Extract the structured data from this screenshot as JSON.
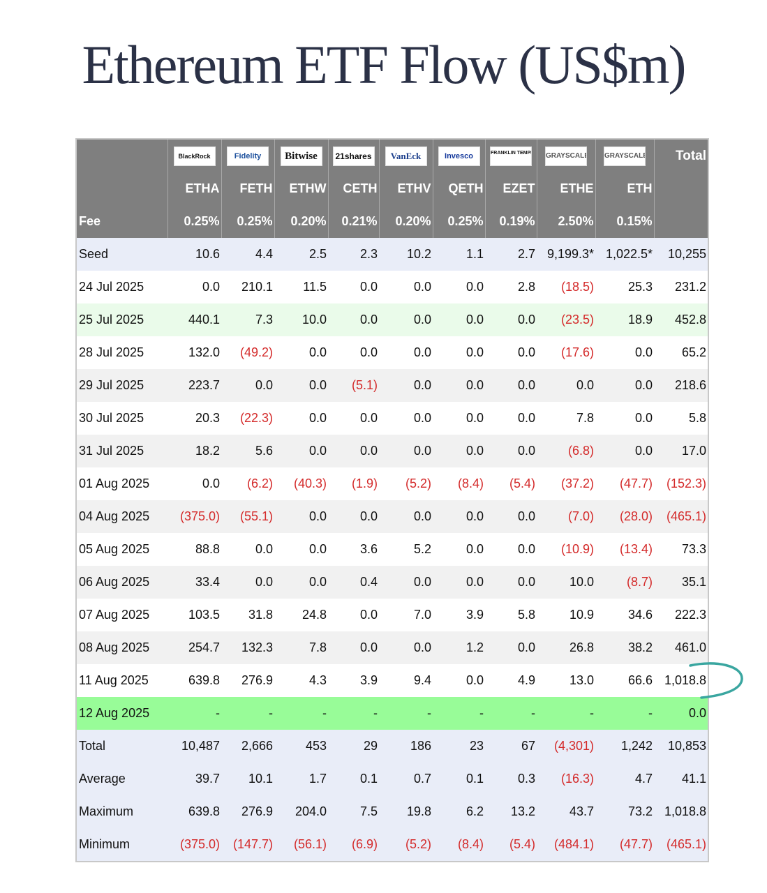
{
  "title": "Ethereum ETF Flow (US$m)",
  "header": {
    "logos": [
      "BlackRock",
      "Fidelity",
      "Bitwise",
      "21shares",
      "VanEck",
      "Invesco",
      "FRANKLIN TEMPLETON",
      "GRAYSCALE",
      "GRAYSCALE"
    ],
    "total_label": "Total",
    "tickers": [
      "ETHA",
      "FETH",
      "ETHW",
      "CETH",
      "ETHV",
      "QETH",
      "EZET",
      "ETHE",
      "ETH"
    ],
    "fee_label": "Fee",
    "fees": [
      "0.25%",
      "0.25%",
      "0.20%",
      "0.21%",
      "0.20%",
      "0.25%",
      "0.19%",
      "2.50%",
      "0.15%"
    ]
  },
  "rows": [
    {
      "label": "Seed",
      "values": [
        "10.6",
        "4.4",
        "2.5",
        "2.3",
        "10.2",
        "1.1",
        "2.7",
        "9,199.3*",
        "1,022.5*",
        "10,255"
      ]
    },
    {
      "label": "24 Jul 2025",
      "values": [
        "0.0",
        "210.1",
        "11.5",
        "0.0",
        "0.0",
        "0.0",
        "2.8",
        "(18.5)",
        "25.3",
        "231.2"
      ]
    },
    {
      "label": "25 Jul 2025",
      "values": [
        "440.1",
        "7.3",
        "10.0",
        "0.0",
        "0.0",
        "0.0",
        "0.0",
        "(23.5)",
        "18.9",
        "452.8"
      ]
    },
    {
      "label": "28 Jul 2025",
      "values": [
        "132.0",
        "(49.2)",
        "0.0",
        "0.0",
        "0.0",
        "0.0",
        "0.0",
        "(17.6)",
        "0.0",
        "65.2"
      ]
    },
    {
      "label": "29 Jul 2025",
      "values": [
        "223.7",
        "0.0",
        "0.0",
        "(5.1)",
        "0.0",
        "0.0",
        "0.0",
        "0.0",
        "0.0",
        "218.6"
      ]
    },
    {
      "label": "30 Jul 2025",
      "values": [
        "20.3",
        "(22.3)",
        "0.0",
        "0.0",
        "0.0",
        "0.0",
        "0.0",
        "7.8",
        "0.0",
        "5.8"
      ]
    },
    {
      "label": "31 Jul 2025",
      "values": [
        "18.2",
        "5.6",
        "0.0",
        "0.0",
        "0.0",
        "0.0",
        "0.0",
        "(6.8)",
        "0.0",
        "17.0"
      ]
    },
    {
      "label": "01 Aug 2025",
      "values": [
        "0.0",
        "(6.2)",
        "(40.3)",
        "(1.9)",
        "(5.2)",
        "(8.4)",
        "(5.4)",
        "(37.2)",
        "(47.7)",
        "(152.3)"
      ]
    },
    {
      "label": "04 Aug 2025",
      "values": [
        "(375.0)",
        "(55.1)",
        "0.0",
        "0.0",
        "0.0",
        "0.0",
        "0.0",
        "(7.0)",
        "(28.0)",
        "(465.1)"
      ]
    },
    {
      "label": "05 Aug 2025",
      "values": [
        "88.8",
        "0.0",
        "0.0",
        "3.6",
        "5.2",
        "0.0",
        "0.0",
        "(10.9)",
        "(13.4)",
        "73.3"
      ]
    },
    {
      "label": "06 Aug 2025",
      "values": [
        "33.4",
        "0.0",
        "0.0",
        "0.4",
        "0.0",
        "0.0",
        "0.0",
        "10.0",
        "(8.7)",
        "35.1"
      ]
    },
    {
      "label": "07 Aug 2025",
      "values": [
        "103.5",
        "31.8",
        "24.8",
        "0.0",
        "7.0",
        "3.9",
        "5.8",
        "10.9",
        "34.6",
        "222.3"
      ]
    },
    {
      "label": "08 Aug 2025",
      "values": [
        "254.7",
        "132.3",
        "7.8",
        "0.0",
        "0.0",
        "1.2",
        "0.0",
        "26.8",
        "38.2",
        "461.0"
      ]
    },
    {
      "label": "11 Aug 2025",
      "values": [
        "639.8",
        "276.9",
        "4.3",
        "3.9",
        "9.4",
        "0.0",
        "4.9",
        "13.0",
        "66.6",
        "1,018.8"
      ]
    },
    {
      "label": "12 Aug 2025",
      "values": [
        "-",
        "-",
        "-",
        "-",
        "-",
        "-",
        "-",
        "-",
        "-",
        "0.0"
      ]
    },
    {
      "label": "Total",
      "values": [
        "10,487",
        "2,666",
        "453",
        "29",
        "186",
        "23",
        "67",
        "(4,301)",
        "1,242",
        "10,853"
      ]
    },
    {
      "label": "Average",
      "values": [
        "39.7",
        "10.1",
        "1.7",
        "0.1",
        "0.7",
        "0.1",
        "0.3",
        "(16.3)",
        "4.7",
        "41.1"
      ]
    },
    {
      "label": "Maximum",
      "values": [
        "639.8",
        "276.9",
        "204.0",
        "7.5",
        "19.8",
        "6.2",
        "13.2",
        "43.7",
        "73.2",
        "1,018.8"
      ]
    },
    {
      "label": "Minimum",
      "values": [
        "(375.0)",
        "(147.7)",
        "(56.1)",
        "(6.9)",
        "(5.2)",
        "(8.4)",
        "(5.4)",
        "(484.1)",
        "(47.7)",
        "(465.1)"
      ]
    }
  ],
  "colors": {
    "header_bg": "#7f7f7f",
    "negative": "#d42a2a",
    "highlight_today": "#98fc98",
    "highlight_light": "#eafbea",
    "summary_bg": "#e9edf8",
    "annotation": "#3aa6a0"
  }
}
